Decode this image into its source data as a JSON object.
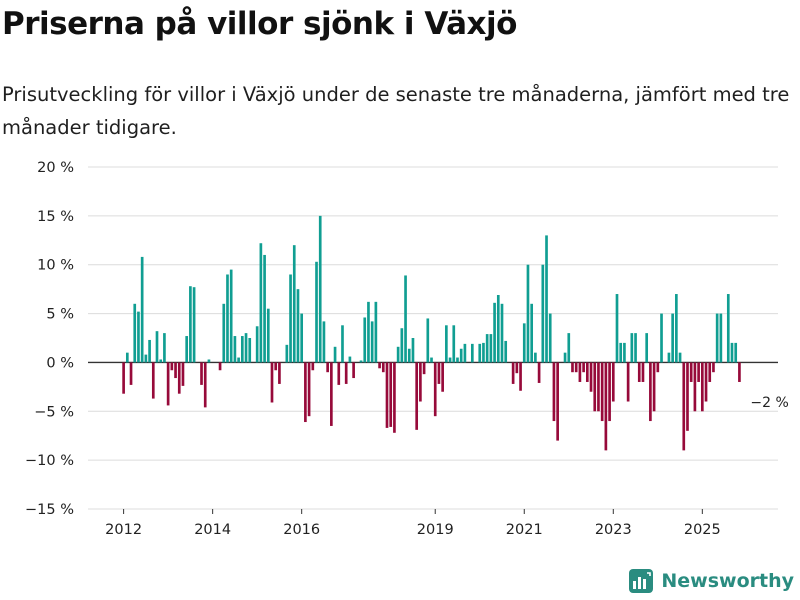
{
  "title": "Priserna på villor sjönk i Växjö",
  "subtitle": "Prisutveckling för villor i Växjö under de senaste tre månaderna, jämfört med tre månader tidigare.",
  "brand": {
    "name": "Newsworthy",
    "icon": "newsworthy-logo-icon"
  },
  "colors": {
    "positive": "#109e92",
    "negative": "#970a3a",
    "grid": "#dcdcdc",
    "axis": "#333333",
    "text": "#222222"
  },
  "chart_data": {
    "type": "bar",
    "title": "Priserna på villor sjönk i Växjö",
    "xlabel": "",
    "ylabel": "",
    "ylim": [
      -15,
      20
    ],
    "y_ticks": [
      20,
      15,
      10,
      5,
      0,
      -5,
      -10,
      -15
    ],
    "y_tick_labels": [
      "20 %",
      "15 %",
      "10 %",
      "5 %",
      "0 %",
      "−5 %",
      "−10 %",
      "−15 %"
    ],
    "x_range": [
      2011.2,
      2026.7
    ],
    "x_ticks": [
      2012,
      2014,
      2016,
      2019,
      2021,
      2023,
      2025
    ],
    "x_tick_labels": [
      "2012",
      "2014",
      "2016",
      "2019",
      "2021",
      "2023",
      "2025"
    ],
    "x_start": 2012.0,
    "x_step": 0.0833333,
    "values": [
      -3.2,
      1.0,
      -2.3,
      6.0,
      5.2,
      10.8,
      0.8,
      2.3,
      -3.7,
      3.2,
      0.3,
      3.0,
      -4.4,
      -0.8,
      -1.6,
      -3.2,
      -2.4,
      2.7,
      7.8,
      7.7,
      0.0,
      -2.3,
      -4.6,
      0.3,
      0.0,
      0.0,
      -0.8,
      6.0,
      9.0,
      9.5,
      2.7,
      0.5,
      2.7,
      3.0,
      2.5,
      0.0,
      3.7,
      12.2,
      11.0,
      5.5,
      -4.1,
      -0.8,
      -2.2,
      0.0,
      1.8,
      9.0,
      12.0,
      7.5,
      5.0,
      -6.1,
      -5.5,
      -0.8,
      10.3,
      15.0,
      4.2,
      -1.0,
      -6.5,
      1.6,
      -2.3,
      3.8,
      -2.2,
      0.6,
      -1.6,
      0.0,
      0.2,
      4.6,
      6.2,
      4.2,
      6.2,
      -0.6,
      -1.0,
      -6.7,
      -6.6,
      -7.2,
      1.6,
      3.5,
      8.9,
      1.4,
      2.5,
      -6.9,
      -4.0,
      -1.2,
      4.5,
      0.5,
      -5.5,
      -2.2,
      -3.0,
      3.8,
      0.5,
      3.8,
      0.5,
      1.4,
      1.9,
      0.0,
      1.9,
      0.0,
      1.9,
      2.0,
      2.9,
      2.9,
      6.1,
      6.9,
      6.0,
      2.2,
      0.0,
      -2.2,
      -1.1,
      -2.9,
      4.0,
      10.0,
      6.0,
      1.0,
      -2.1,
      10.0,
      13.0,
      5.0,
      -6.0,
      -8.0,
      0.0,
      1.0,
      3.0,
      -1.0,
      -1.0,
      -2.0,
      -1.0,
      -2.0,
      -3.0,
      -5.0,
      -5.0,
      -6.0,
      -9.0,
      -6.0,
      -4.0,
      7.0,
      2.0,
      2.0,
      -4.0,
      3.0,
      3.0,
      -2.0,
      -2.0,
      3.0,
      -6.0,
      -5.0,
      -1.0,
      5.0,
      0.0,
      1.0,
      5.0,
      7.0,
      1.0,
      -9.0,
      -7.0,
      -2.0,
      -5.0,
      -2.0,
      -5.0,
      -4.0,
      -2.0,
      -1.0,
      5.0,
      5.0,
      0.0,
      7.0,
      2.0,
      2.0,
      -2.0
    ],
    "last_value_label": "−2 %"
  }
}
